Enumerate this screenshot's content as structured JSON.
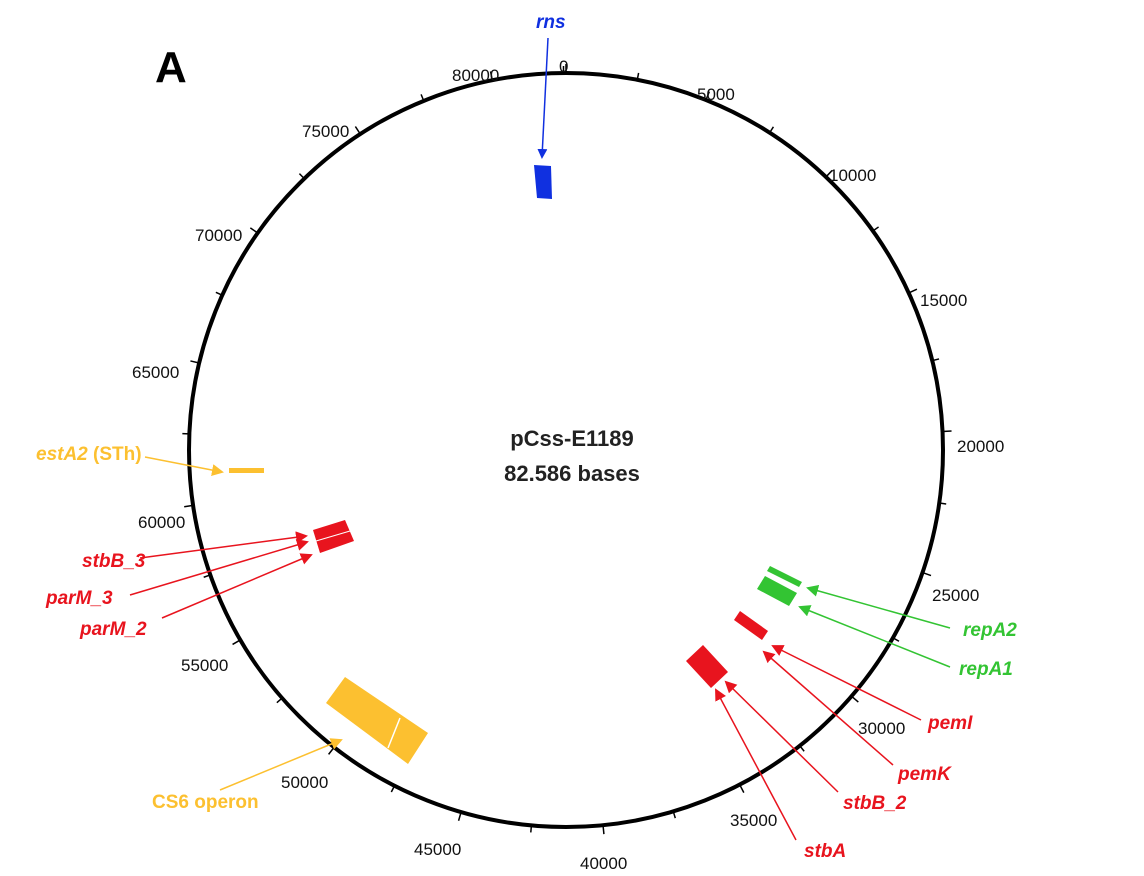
{
  "panel_label": "A",
  "plasmid": {
    "name": "pCss-E1189",
    "size_label": "82.586 bases",
    "total_bp": 82586
  },
  "ticks": {
    "major_labels": [
      "0",
      "5000",
      "10000",
      "15000",
      "20000",
      "25000",
      "30000",
      "35000",
      "40000",
      "45000",
      "50000",
      "55000",
      "60000",
      "65000",
      "70000",
      "75000",
      "80000"
    ]
  },
  "colors": {
    "rns": "#1030e0",
    "plasmid_maintenance": "#e8141e",
    "replication": "#33c433",
    "toxin_cfa": "#fcc030",
    "backbone": "#000000"
  },
  "features": [
    {
      "id": "rns",
      "label": "rns",
      "color": "#1030e0"
    },
    {
      "id": "repA2",
      "label": "repA2",
      "color": "#33c433"
    },
    {
      "id": "repA1",
      "label": "repA1",
      "color": "#33c433"
    },
    {
      "id": "pemI",
      "label": "pemI",
      "color": "#e8141e"
    },
    {
      "id": "pemK",
      "label": "pemK",
      "color": "#e8141e"
    },
    {
      "id": "stbB_2",
      "label": "stbB_2",
      "color": "#e8141e"
    },
    {
      "id": "stbA",
      "label": "stbA",
      "color": "#e8141e"
    },
    {
      "id": "cs6",
      "label": "CS6 operon",
      "color": "#fcc030"
    },
    {
      "id": "parM_2",
      "label": "parM_2",
      "color": "#e8141e"
    },
    {
      "id": "parM_3",
      "label": "parM_3",
      "color": "#e8141e"
    },
    {
      "id": "stbB_3",
      "label": "stbB_3",
      "color": "#e8141e"
    },
    {
      "id": "estA2",
      "label": "estA2",
      "label_suffix": " (STh)",
      "color": "#fcc030"
    }
  ]
}
